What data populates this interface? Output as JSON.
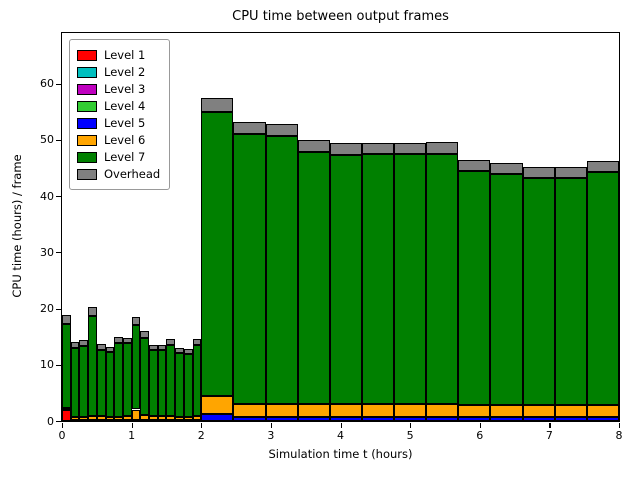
{
  "chart_data": {
    "type": "bar",
    "stacked": true,
    "title": "CPU time between output frames",
    "xlabel": "Simulation time t (hours)",
    "ylabel": "CPU time (hours) / frame",
    "xlim": [
      0,
      8
    ],
    "ylim": [
      0,
      69
    ],
    "xticks": [
      0,
      1,
      2,
      3,
      4,
      5,
      6,
      7,
      8
    ],
    "yticks": [
      0,
      10,
      20,
      30,
      40,
      50,
      60
    ],
    "grid": false,
    "legend_position": "upper-left",
    "series": [
      {
        "name": "Level 1",
        "color": "#ff0000"
      },
      {
        "name": "Level 2",
        "color": "#00bfbf"
      },
      {
        "name": "Level 3",
        "color": "#bf00bf"
      },
      {
        "name": "Level 4",
        "color": "#32cd32"
      },
      {
        "name": "Level 5",
        "color": "#0000ff"
      },
      {
        "name": "Level 6",
        "color": "#ffa500"
      },
      {
        "name": "Level 7",
        "color": "#008000"
      },
      {
        "name": "Overhead",
        "color": "#808080"
      }
    ],
    "bars": [
      {
        "x": 0.0,
        "w": 0.125,
        "v": [
          2.0,
          0,
          0,
          0,
          0,
          0.4,
          14.9,
          1.5
        ]
      },
      {
        "x": 0.125,
        "w": 0.125,
        "v": [
          0.15,
          0,
          0,
          0,
          0,
          0.6,
          12.3,
          1.0
        ]
      },
      {
        "x": 0.25,
        "w": 0.125,
        "v": [
          0.15,
          0,
          0,
          0,
          0,
          0.6,
          12.6,
          1.1
        ]
      },
      {
        "x": 0.375,
        "w": 0.125,
        "v": [
          0.15,
          0,
          0,
          0,
          0,
          0.8,
          17.8,
          1.6
        ]
      },
      {
        "x": 0.5,
        "w": 0.125,
        "v": [
          0.15,
          0,
          0,
          0,
          0,
          0.7,
          11.8,
          1.0
        ]
      },
      {
        "x": 0.625,
        "w": 0.125,
        "v": [
          0.15,
          0,
          0,
          0,
          0,
          0.6,
          11.6,
          0.9
        ]
      },
      {
        "x": 0.75,
        "w": 0.125,
        "v": [
          0.15,
          0,
          0,
          0,
          0,
          0.6,
          13.1,
          1.1
        ]
      },
      {
        "x": 0.875,
        "w": 0.125,
        "v": [
          0.15,
          0,
          0,
          0,
          0,
          0.7,
          13.0,
          1.0
        ]
      },
      {
        "x": 1.0,
        "w": 0.125,
        "v": [
          0.15,
          0,
          0,
          0,
          0,
          1.9,
          15.1,
          1.3
        ]
      },
      {
        "x": 1.125,
        "w": 0.125,
        "v": [
          0.15,
          0,
          0,
          0,
          0,
          0.9,
          13.8,
          1.2
        ]
      },
      {
        "x": 1.25,
        "w": 0.125,
        "v": [
          0.15,
          0,
          0,
          0,
          0,
          0.7,
          11.7,
          1.0
        ]
      },
      {
        "x": 1.375,
        "w": 0.125,
        "v": [
          0.15,
          0,
          0,
          0,
          0,
          0.7,
          11.7,
          0.9
        ]
      },
      {
        "x": 1.5,
        "w": 0.125,
        "v": [
          0.15,
          0,
          0,
          0,
          0,
          0.7,
          12.7,
          1.1
        ]
      },
      {
        "x": 1.625,
        "w": 0.125,
        "v": [
          0.15,
          0,
          0,
          0,
          0,
          0.6,
          11.4,
          0.9
        ]
      },
      {
        "x": 1.75,
        "w": 0.125,
        "v": [
          0.15,
          0,
          0,
          0,
          0,
          0.6,
          11.2,
          0.9
        ]
      },
      {
        "x": 1.875,
        "w": 0.125,
        "v": [
          0.15,
          0,
          0,
          0,
          0,
          0.7,
          12.7,
          1.0
        ]
      },
      {
        "x": 2.0,
        "w": 0.4615,
        "v": [
          0,
          0,
          0,
          0,
          1.2,
          3.3,
          50.5,
          2.5
        ]
      },
      {
        "x": 2.4615,
        "w": 0.4615,
        "v": [
          0,
          0,
          0,
          0,
          0.8,
          2.2,
          48.0,
          2.2
        ]
      },
      {
        "x": 2.9231,
        "w": 0.4615,
        "v": [
          0,
          0,
          0,
          0,
          0.8,
          2.2,
          47.7,
          2.2
        ]
      },
      {
        "x": 3.3846,
        "w": 0.4615,
        "v": [
          0,
          0,
          0,
          0,
          0.8,
          2.2,
          44.8,
          2.1
        ]
      },
      {
        "x": 3.8462,
        "w": 0.4615,
        "v": [
          0,
          0,
          0,
          0,
          0.8,
          2.2,
          44.3,
          2.1
        ]
      },
      {
        "x": 4.3077,
        "w": 0.4615,
        "v": [
          0,
          0,
          0,
          0,
          0.8,
          2.2,
          44.4,
          2.1
        ]
      },
      {
        "x": 4.7692,
        "w": 0.4615,
        "v": [
          0,
          0,
          0,
          0,
          0.8,
          2.2,
          44.4,
          2.1
        ]
      },
      {
        "x": 5.2308,
        "w": 0.4615,
        "v": [
          0,
          0,
          0,
          0,
          0.8,
          2.2,
          44.5,
          2.1
        ]
      },
      {
        "x": 5.6923,
        "w": 0.4615,
        "v": [
          0,
          0,
          0,
          0,
          0.7,
          2.1,
          41.7,
          2.0
        ]
      },
      {
        "x": 6.1538,
        "w": 0.4615,
        "v": [
          0,
          0,
          0,
          0,
          0.7,
          2.1,
          41.1,
          2.0
        ]
      },
      {
        "x": 6.6154,
        "w": 0.4615,
        "v": [
          0,
          0,
          0,
          0,
          0.7,
          2.1,
          40.4,
          2.0
        ]
      },
      {
        "x": 7.0769,
        "w": 0.4615,
        "v": [
          0,
          0,
          0,
          0,
          0.7,
          2.1,
          40.4,
          2.0
        ]
      },
      {
        "x": 7.5385,
        "w": 0.4615,
        "v": [
          0,
          0,
          0,
          0,
          0.7,
          2.1,
          41.5,
          2.0
        ]
      }
    ]
  }
}
